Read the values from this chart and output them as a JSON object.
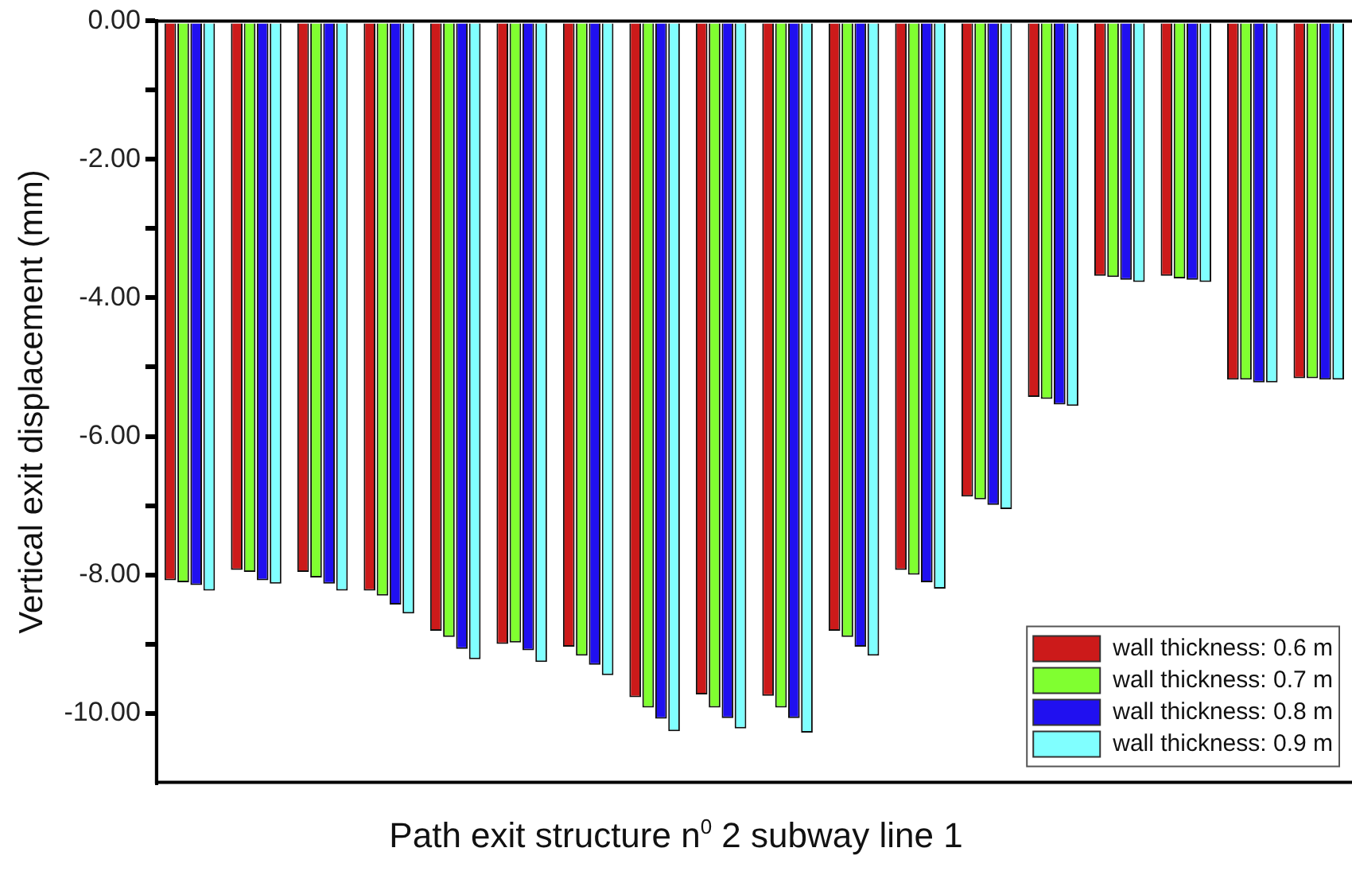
{
  "chart_data": {
    "type": "bar",
    "xlabel": "Path exit structure n$^{0}$ 2 subway line 1",
    "ylabel": "Vertical exit displacement (mm)",
    "categories": [
      null,
      null,
      null,
      null,
      null,
      null,
      null,
      null,
      null,
      null,
      null,
      null,
      null,
      null,
      null,
      null,
      null,
      null
    ],
    "series": [
      {
        "name": "wall thickness: 0.6 m",
        "color": "#cc1a1a",
        "values": [
          -8.08,
          -7.93,
          -7.96,
          -8.23,
          -8.81,
          -9.0,
          -9.04,
          -9.77,
          -9.73,
          -9.75,
          -8.81,
          -7.93,
          -6.87,
          -5.43,
          -3.68,
          -3.68,
          -5.18,
          -5.16
        ]
      },
      {
        "name": "wall thickness: 0.7 m",
        "color": "#80ff30",
        "values": [
          -8.11,
          -7.96,
          -8.04,
          -8.3,
          -8.9,
          -8.98,
          -9.17,
          -9.92,
          -9.92,
          -9.92,
          -8.9,
          -8.0,
          -6.91,
          -5.46,
          -3.7,
          -3.72,
          -5.18,
          -5.16
        ]
      },
      {
        "name": "wall thickness: 0.8 m",
        "color": "#2010f0",
        "values": [
          -8.15,
          -8.08,
          -8.13,
          -8.43,
          -9.07,
          -9.09,
          -9.3,
          -10.08,
          -10.07,
          -10.07,
          -9.04,
          -8.11,
          -6.99,
          -5.54,
          -3.74,
          -3.74,
          -5.22,
          -5.18
        ]
      },
      {
        "name": "wall thickness: 0.9 m",
        "color": "#80ffff",
        "values": [
          -8.23,
          -8.13,
          -8.23,
          -8.56,
          -9.22,
          -9.26,
          -9.45,
          -10.26,
          -10.22,
          -10.28,
          -9.17,
          -8.2,
          -7.05,
          -5.56,
          -3.77,
          -3.77,
          -5.22,
          -5.18
        ]
      }
    ],
    "ylim": [
      -11,
      0
    ],
    "yticks": [
      {
        "value": 0,
        "label": "0.00"
      },
      {
        "value": -1,
        "label": null
      },
      {
        "value": -2,
        "label": "-2.00"
      },
      {
        "value": -3,
        "label": null
      },
      {
        "value": -4,
        "label": "-4.00"
      },
      {
        "value": -5,
        "label": null
      },
      {
        "value": -6,
        "label": "-6.00"
      },
      {
        "value": -7,
        "label": null
      },
      {
        "value": -8,
        "label": "-8.00"
      },
      {
        "value": -9,
        "label": null
      },
      {
        "value": -10,
        "label": "-10.00"
      }
    ],
    "grid": false,
    "legend": "bottom right"
  }
}
